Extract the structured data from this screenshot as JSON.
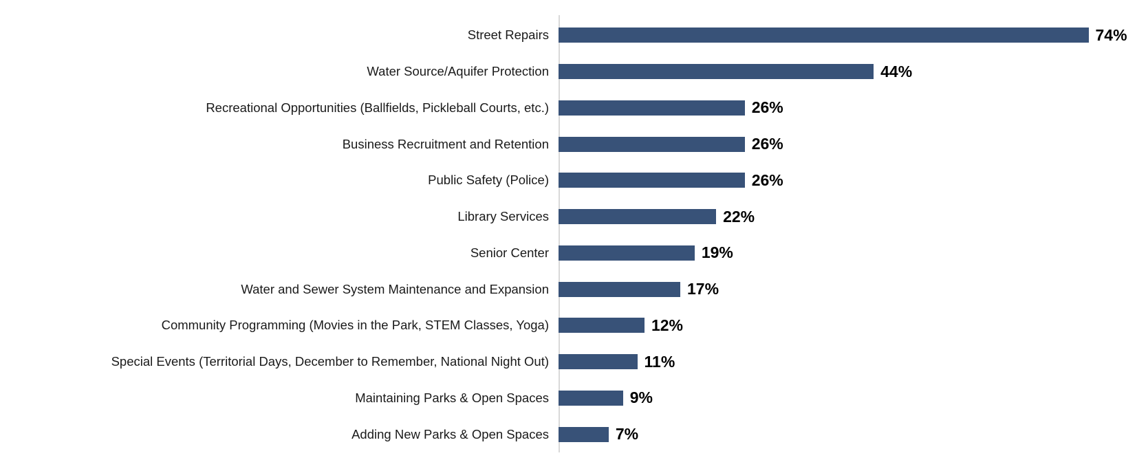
{
  "chart": {
    "title": "",
    "colors": {
      "bar": "#385278",
      "axis_line": "#d9d9d9",
      "category_text": "#1a1a1a",
      "value_text": "#000000",
      "background": "#ffffff"
    }
  },
  "chart_data": {
    "type": "bar",
    "orientation": "horizontal",
    "title": "",
    "xlabel": "",
    "ylabel": "",
    "xlim": [
      0,
      80
    ],
    "grid": false,
    "legend": false,
    "bar_color": "#385278",
    "categories": [
      "Street Repairs",
      "Water Source/Aquifer Protection",
      "Recreational Opportunities (Ballfields, Pickleball Courts, etc.)",
      "Business Recruitment and Retention",
      "Public Safety (Police)",
      "Library Services",
      "Senior Center",
      "Water and Sewer System Maintenance and Expansion",
      "Community Programming (Movies in the Park, STEM Classes, Yoga)",
      "Special Events (Territorial Days, December to Remember, National Night Out)",
      "Maintaining Parks & Open Spaces",
      "Adding New Parks & Open Spaces"
    ],
    "values": [
      74,
      44,
      26,
      26,
      26,
      22,
      19,
      17,
      12,
      11,
      9,
      7
    ],
    "value_labels": [
      "74%",
      "44%",
      "26%",
      "26%",
      "26%",
      "22%",
      "19%",
      "17%",
      "12%",
      "11%",
      "9%",
      "7%"
    ]
  }
}
